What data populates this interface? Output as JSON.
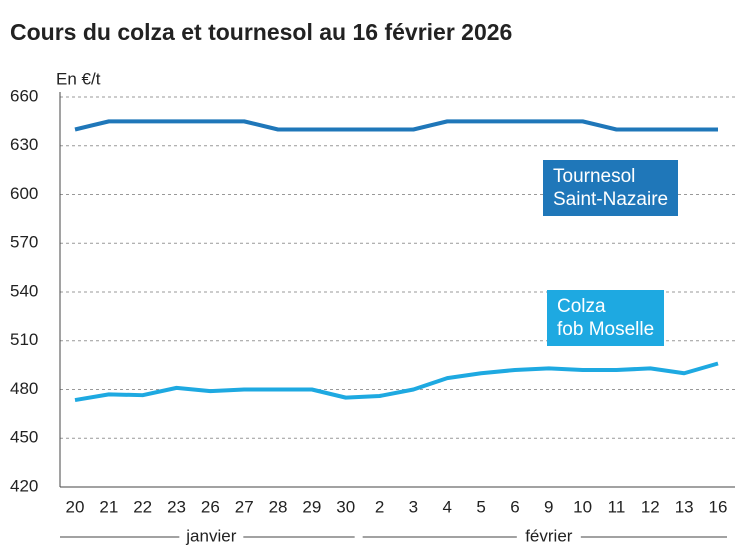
{
  "chart_data": {
    "type": "line",
    "title": "Cours du colza et tournesol au 16 février 2026",
    "y_label": "En €/t",
    "categories": [
      "20",
      "21",
      "22",
      "23",
      "26",
      "27",
      "28",
      "29",
      "30",
      "2",
      "3",
      "4",
      "5",
      "6",
      "9",
      "10",
      "11",
      "12",
      "13",
      "16"
    ],
    "x_groups": [
      {
        "label": "janvier",
        "count": 9
      },
      {
        "label": "février",
        "count": 11
      }
    ],
    "series": [
      {
        "name": "Tournesol\nSaint-Nazaire",
        "color": "#1f77b9",
        "values": [
          640,
          645,
          645,
          645,
          645,
          645,
          640,
          640,
          640,
          640,
          640,
          645,
          645,
          645,
          645,
          645,
          640,
          640,
          640,
          640
        ]
      },
      {
        "name": "Colza\nfob Moselle",
        "color": "#1ea9e1",
        "values": [
          473.5,
          477,
          476.5,
          481,
          479,
          480,
          480,
          480,
          475,
          476,
          480,
          487,
          490,
          492,
          493,
          492,
          492,
          493,
          490,
          496
        ]
      }
    ],
    "ylim": [
      420,
      660
    ],
    "yticks": [
      420,
      450,
      480,
      510,
      540,
      570,
      600,
      630,
      660
    ],
    "grid": true
  }
}
